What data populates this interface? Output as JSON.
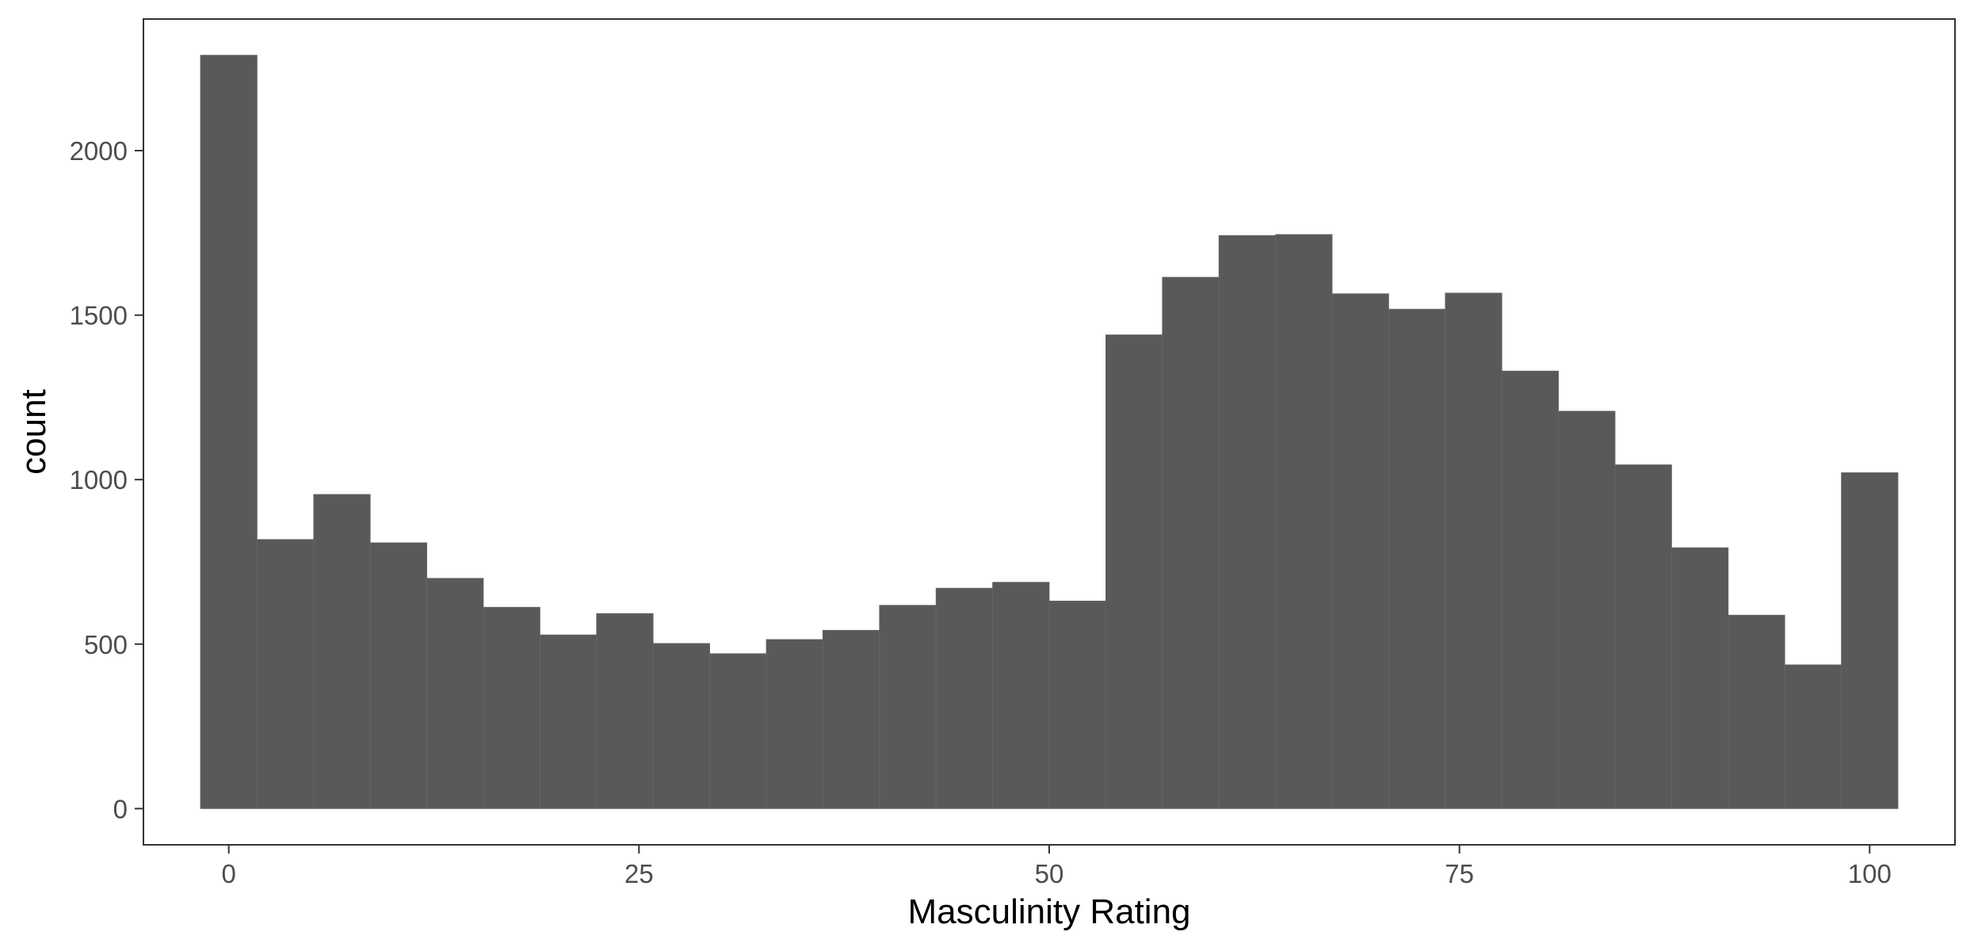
{
  "chart_data": {
    "type": "bar",
    "subtype": "histogram",
    "xlabel": "Masculinity Rating",
    "ylabel": "count",
    "bin_width": 3.448,
    "bin_centers": [
      0,
      3.448,
      6.897,
      10.345,
      13.793,
      17.241,
      20.69,
      24.138,
      27.586,
      31.034,
      34.483,
      37.931,
      41.379,
      44.828,
      48.276,
      51.724,
      55.172,
      58.621,
      62.069,
      65.517,
      68.966,
      72.414,
      75.862,
      79.31,
      82.759,
      86.207,
      89.655,
      93.103,
      96.552,
      100
    ],
    "values": [
      2290,
      818,
      955,
      808,
      700,
      612,
      528,
      593,
      502,
      471,
      514,
      542,
      618,
      670,
      688,
      631,
      1440,
      1615,
      1742,
      1745,
      1565,
      1518,
      1567,
      1330,
      1208,
      1045,
      793,
      588,
      437,
      1021
    ],
    "xlim": [
      -5.2,
      105.2
    ],
    "ylim": [
      -110,
      2400
    ],
    "x_ticks": [
      {
        "value": 0,
        "label": "0"
      },
      {
        "value": 25,
        "label": "25"
      },
      {
        "value": 50,
        "label": "50"
      },
      {
        "value": 75,
        "label": "75"
      },
      {
        "value": 100,
        "label": "100"
      }
    ],
    "y_ticks": [
      {
        "value": 0,
        "label": "0"
      },
      {
        "value": 500,
        "label": "500"
      },
      {
        "value": 1000,
        "label": "1000"
      },
      {
        "value": 1500,
        "label": "1500"
      },
      {
        "value": 2000,
        "label": "2000"
      }
    ],
    "bar_color": "#595959",
    "bar_outline_color": "#666666",
    "panel_border_color": "#333333",
    "tick_color": "#333333",
    "grid": false
  }
}
